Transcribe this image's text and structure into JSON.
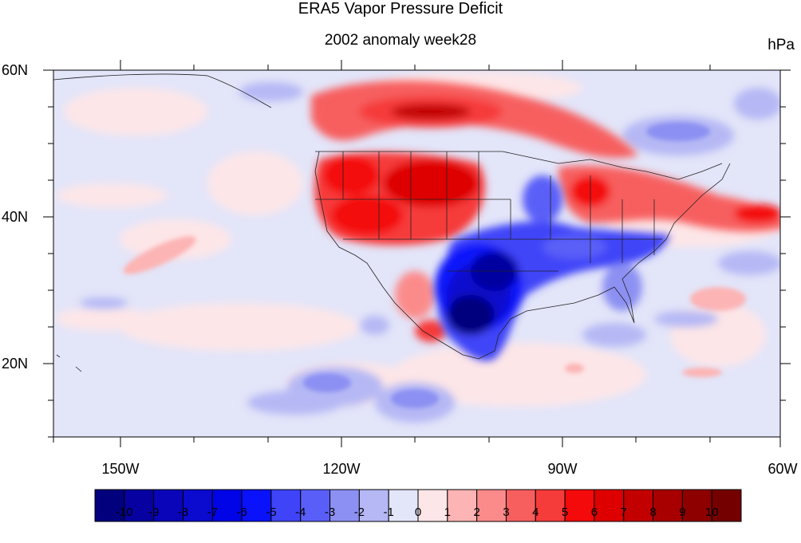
{
  "title": "ERA5 Vapor Pressure Deficit",
  "subtitle": "2002 anomaly week28",
  "units": "hPa",
  "chart_data": {
    "type": "heatmap",
    "title": "ERA5 Vapor Pressure Deficit",
    "subtitle": "2002 anomaly week28",
    "units": "hPa",
    "lat_labels": [
      "60N",
      "40N",
      "20N"
    ],
    "lon_labels": [
      "150W",
      "120W",
      "90W",
      "60W"
    ],
    "lat_range": [
      10,
      60
    ],
    "lon_range": [
      -159,
      -60
    ],
    "colorbar": {
      "labels": [
        "-10",
        "-9",
        "-8",
        "-7",
        "-6",
        "-5",
        "-4",
        "-3",
        "-2",
        "-1",
        "0",
        "1",
        "2",
        "3",
        "4",
        "5",
        "6",
        "7",
        "8",
        "9",
        "10"
      ],
      "colors": [
        "#03007e",
        "#0601a0",
        "#0a05b8",
        "#0b0acf",
        "#0004e6",
        "#0a12fb",
        "#3f44f8",
        "#5a5ef8",
        "#8c90f2",
        "#b5b8f4",
        "#e3e5f9",
        "#fde6e8",
        "#fcb4b4",
        "#fb8b8b",
        "#f75e5e",
        "#f63b3b",
        "#f40a0a",
        "#de0000",
        "#c30000",
        "#a80000",
        "#8e0000",
        "#740000"
      ]
    }
  }
}
